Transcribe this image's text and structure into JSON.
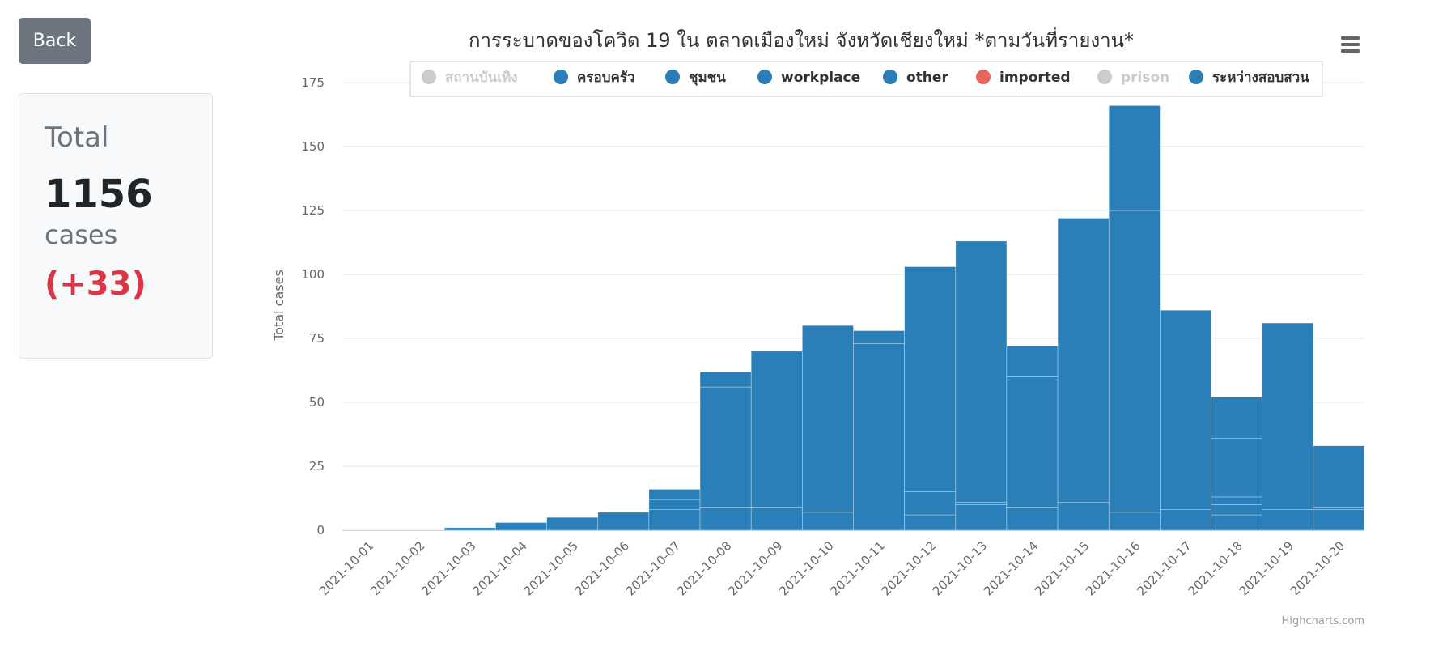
{
  "back_button": {
    "label": "Back"
  },
  "total_card": {
    "title": "Total",
    "count": "1156",
    "unit": "cases",
    "delta": "(+33)"
  },
  "colors": {
    "primary": "#2a7fb8",
    "imported": "#e8665f",
    "disabled": "#cccccc",
    "delta": "#dc3545"
  },
  "chart_data": {
    "type": "bar",
    "stacked": true,
    "title": "การระบาดของโควิด 19 ใน ตลาดเมืองใหม่ จังหวัดเชียงใหม่ *ตามวันที่รายงาน*",
    "ylabel": "Total cases",
    "xlabel": "",
    "ylim": [
      0,
      175
    ],
    "yticks": [
      0,
      25,
      50,
      75,
      100,
      125,
      150,
      175
    ],
    "grid": true,
    "legend_position": "top",
    "credit": "Highcharts.com",
    "categories": [
      "2021-10-01",
      "2021-10-02",
      "2021-10-03",
      "2021-10-04",
      "2021-10-05",
      "2021-10-06",
      "2021-10-07",
      "2021-10-08",
      "2021-10-09",
      "2021-10-10",
      "2021-10-11",
      "2021-10-12",
      "2021-10-13",
      "2021-10-14",
      "2021-10-15",
      "2021-10-16",
      "2021-10-17",
      "2021-10-18",
      "2021-10-19",
      "2021-10-20"
    ],
    "legend": [
      {
        "name": "สถานบันเทิง",
        "color": "#cccccc",
        "visible": false
      },
      {
        "name": "ครอบครัว",
        "color": "#2a7fb8",
        "visible": true
      },
      {
        "name": "ชุมชน",
        "color": "#2a7fb8",
        "visible": true
      },
      {
        "name": "workplace",
        "color": "#2a7fb8",
        "visible": true
      },
      {
        "name": "other",
        "color": "#2a7fb8",
        "visible": true
      },
      {
        "name": "imported",
        "color": "#e8665f",
        "visible": true
      },
      {
        "name": "prison",
        "color": "#cccccc",
        "visible": false
      },
      {
        "name": "ระหว่างสอบสวน",
        "color": "#2a7fb8",
        "visible": true
      }
    ],
    "stack_boundaries": [
      [],
      [],
      [],
      [],
      [],
      [],
      [
        8,
        12
      ],
      [
        9,
        56
      ],
      [
        9
      ],
      [
        7
      ],
      [
        73
      ],
      [
        6,
        15
      ],
      [
        10,
        11
      ],
      [
        9,
        60
      ],
      [
        11
      ],
      [
        7,
        125
      ],
      [
        8
      ],
      [
        6,
        10,
        13,
        36
      ],
      [
        8
      ],
      [
        8,
        9
      ]
    ],
    "totals": [
      0,
      0,
      1,
      3,
      5,
      7,
      16,
      62,
      70,
      80,
      78,
      103,
      113,
      72,
      122,
      166,
      86,
      52,
      81,
      33
    ]
  }
}
